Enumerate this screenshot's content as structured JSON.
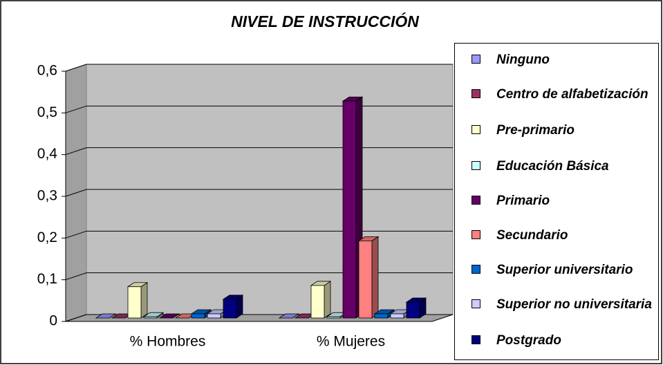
{
  "chart_data": {
    "type": "bar3d",
    "title": "NIVEL DE INSTRUCCIÓN",
    "categories": [
      "% Hombres",
      "% Mujeres"
    ],
    "series": [
      {
        "name": "Ninguno",
        "color": "#9999FF",
        "values": [
          0,
          0
        ]
      },
      {
        "name": "Centro de alfabetización",
        "color": "#993366",
        "values": [
          0,
          0
        ]
      },
      {
        "name": "Pre-primario",
        "color": "#FFFFCC",
        "values": [
          0.075,
          0.078
        ]
      },
      {
        "name": "Educación Básica",
        "color": "#CCFFFF",
        "values": [
          0.003,
          0.003
        ]
      },
      {
        "name": "Primario",
        "color": "#660066",
        "values": [
          0,
          0.52
        ]
      },
      {
        "name": "Secundario",
        "color": "#FF8080",
        "values": [
          0,
          0.185
        ]
      },
      {
        "name": "Superior universitario",
        "color": "#0066CC",
        "values": [
          0.01,
          0.01
        ]
      },
      {
        "name": "Superior no universitaria",
        "color": "#CCCCFF",
        "values": [
          0.01,
          0.01
        ]
      },
      {
        "name": "Postgrado",
        "color": "#000080",
        "values": [
          0.045,
          0.038
        ]
      }
    ],
    "ylim": [
      0,
      0.6
    ],
    "yticks": [
      0,
      {
        "value": 0.1,
        "label": "0,1"
      },
      {
        "value": 0.2,
        "label": "0,2"
      },
      {
        "value": 0.3,
        "label": "0,3"
      },
      {
        "value": 0.4,
        "label": "0,4"
      },
      {
        "value": 0.5,
        "label": "0,5"
      },
      {
        "value": 0.6,
        "label": "0,6"
      }
    ],
    "grid": true
  }
}
